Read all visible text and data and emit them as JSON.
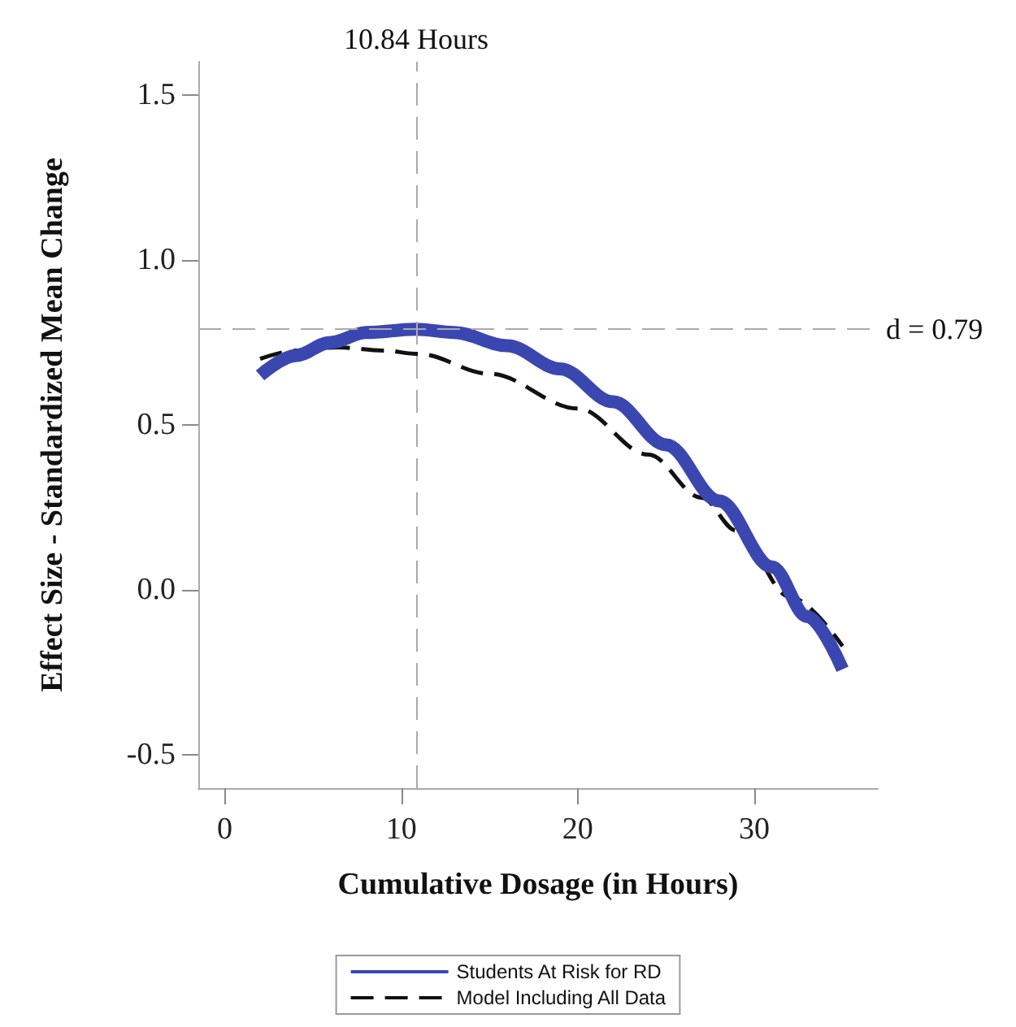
{
  "chart_data": {
    "type": "line",
    "xlabel": "Cumulative Dosage (in Hours)",
    "ylabel": "Effect Size - Standardized Mean Change",
    "xlim": [
      -1.5,
      37
    ],
    "xticks": [
      0,
      10,
      20,
      30
    ],
    "ylim": [
      -0.6,
      1.6
    ],
    "yticks": [
      {
        "value": -0.5,
        "label": "-0.5"
      },
      {
        "value": 0,
        "label": "0.0"
      },
      {
        "value": 0.5,
        "label": "0.5"
      },
      {
        "value": 1,
        "label": "1.0"
      },
      {
        "value": 1.5,
        "label": "1.5"
      }
    ],
    "grid": false,
    "legend": "bottom",
    "marker": "none",
    "series": [
      {
        "name": "Students At Risk for RD",
        "color": "#3b47b0",
        "line_style": "solid",
        "x": [
          2,
          4,
          6,
          8,
          10.84,
          13,
          16,
          19,
          22,
          25,
          28,
          31,
          33,
          35
        ],
        "values": [
          0.65,
          0.71,
          0.75,
          0.78,
          0.79,
          0.78,
          0.74,
          0.67,
          0.57,
          0.44,
          0.27,
          0.07,
          -0.08,
          -0.24
        ]
      },
      {
        "name": "Model Including All Data",
        "color": "#111111",
        "line_style": "dashed",
        "x": [
          2,
          4,
          6.4,
          9,
          11,
          15,
          20,
          24,
          27,
          29,
          32,
          35
        ],
        "values": [
          0.7,
          0.725,
          0.735,
          0.725,
          0.715,
          0.655,
          0.55,
          0.41,
          0.28,
          0.18,
          -0.02,
          -0.17
        ]
      }
    ],
    "ref_lines": [
      {
        "axis": "x",
        "value": 10.84,
        "label": "10.84 Hours",
        "color": "#aaaaaa",
        "line_style": "dashed"
      },
      {
        "axis": "y",
        "value": 0.79,
        "label": "d = 0.79",
        "color": "#aaaaaa",
        "line_style": "dashed"
      }
    ]
  }
}
